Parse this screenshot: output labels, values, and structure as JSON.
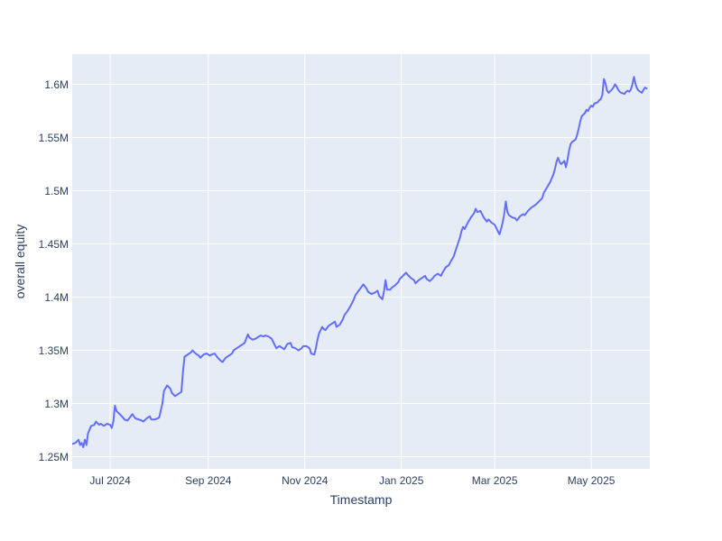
{
  "chart_data": {
    "type": "line",
    "title": "",
    "xlabel": "Timestamp",
    "ylabel": "overall equity",
    "legend": false,
    "grid": true,
    "plot_bg": "#e5ecf6",
    "grid_color": "#ffffff",
    "line_color": "#636efa",
    "text_color": "#2a3f5f",
    "xlim": [
      "2024-06-07",
      "2025-06-07"
    ],
    "ylim": [
      1.2386,
      1.6284
    ],
    "y_unit": "M",
    "x_ticks": [
      {
        "label": "Jul 2024",
        "date": "2024-07-01"
      },
      {
        "label": "Sep 2024",
        "date": "2024-09-01"
      },
      {
        "label": "Nov 2024",
        "date": "2024-11-01"
      },
      {
        "label": "Jan 2025",
        "date": "2025-01-01"
      },
      {
        "label": "Mar 2025",
        "date": "2025-03-01"
      },
      {
        "label": "May 2025",
        "date": "2025-05-01"
      }
    ],
    "y_ticks": [
      {
        "label": "1.25M",
        "value": 1.25
      },
      {
        "label": "1.3M",
        "value": 1.3
      },
      {
        "label": "1.35M",
        "value": 1.35
      },
      {
        "label": "1.4M",
        "value": 1.4
      },
      {
        "label": "1.45M",
        "value": 1.45
      },
      {
        "label": "1.5M",
        "value": 1.5
      },
      {
        "label": "1.55M",
        "value": 1.55
      },
      {
        "label": "1.6M",
        "value": 1.6
      }
    ],
    "series": [
      {
        "name": "overall equity",
        "points": [
          [
            "2024-06-07",
            1.262
          ],
          [
            "2024-06-09",
            1.263
          ],
          [
            "2024-06-11",
            1.266
          ],
          [
            "2024-06-12",
            1.261
          ],
          [
            "2024-06-13",
            1.263
          ],
          [
            "2024-06-14",
            1.259
          ],
          [
            "2024-06-15",
            1.266
          ],
          [
            "2024-06-16",
            1.261
          ],
          [
            "2024-06-17",
            1.272
          ],
          [
            "2024-06-19",
            1.279
          ],
          [
            "2024-06-21",
            1.28
          ],
          [
            "2024-06-22",
            1.283
          ],
          [
            "2024-06-24",
            1.28
          ],
          [
            "2024-06-25",
            1.281
          ],
          [
            "2024-06-27",
            1.279
          ],
          [
            "2024-06-29",
            1.281
          ],
          [
            "2024-07-01",
            1.28
          ],
          [
            "2024-07-02",
            1.277
          ],
          [
            "2024-07-03",
            1.283
          ],
          [
            "2024-07-04",
            1.298
          ],
          [
            "2024-07-05",
            1.293
          ],
          [
            "2024-07-07",
            1.29
          ],
          [
            "2024-07-09",
            1.287
          ],
          [
            "2024-07-10",
            1.285
          ],
          [
            "2024-07-12",
            1.284
          ],
          [
            "2024-07-14",
            1.288
          ],
          [
            "2024-07-15",
            1.29
          ],
          [
            "2024-07-17",
            1.286
          ],
          [
            "2024-07-19",
            1.285
          ],
          [
            "2024-07-21",
            1.284
          ],
          [
            "2024-07-22",
            1.283
          ],
          [
            "2024-07-24",
            1.286
          ],
          [
            "2024-07-26",
            1.288
          ],
          [
            "2024-07-27",
            1.285
          ],
          [
            "2024-07-29",
            1.285
          ],
          [
            "2024-07-31",
            1.286
          ],
          [
            "2024-08-01",
            1.287
          ],
          [
            "2024-08-03",
            1.3
          ],
          [
            "2024-08-04",
            1.312
          ],
          [
            "2024-08-06",
            1.317
          ],
          [
            "2024-08-08",
            1.314
          ],
          [
            "2024-08-09",
            1.31
          ],
          [
            "2024-08-11",
            1.307
          ],
          [
            "2024-08-13",
            1.309
          ],
          [
            "2024-08-15",
            1.311
          ],
          [
            "2024-08-16",
            1.33
          ],
          [
            "2024-08-17",
            1.344
          ],
          [
            "2024-08-19",
            1.346
          ],
          [
            "2024-08-21",
            1.348
          ],
          [
            "2024-08-22",
            1.35
          ],
          [
            "2024-08-24",
            1.347
          ],
          [
            "2024-08-26",
            1.345
          ],
          [
            "2024-08-27",
            1.343
          ],
          [
            "2024-08-29",
            1.346
          ],
          [
            "2024-08-31",
            1.347
          ],
          [
            "2024-09-02",
            1.345
          ],
          [
            "2024-09-03",
            1.346
          ],
          [
            "2024-09-05",
            1.347
          ],
          [
            "2024-09-07",
            1.343
          ],
          [
            "2024-09-09",
            1.34
          ],
          [
            "2024-09-10",
            1.339
          ],
          [
            "2024-09-12",
            1.343
          ],
          [
            "2024-09-14",
            1.345
          ],
          [
            "2024-09-16",
            1.347
          ],
          [
            "2024-09-17",
            1.35
          ],
          [
            "2024-09-19",
            1.352
          ],
          [
            "2024-09-21",
            1.354
          ],
          [
            "2024-09-22",
            1.355
          ],
          [
            "2024-09-24",
            1.357
          ],
          [
            "2024-09-26",
            1.365
          ],
          [
            "2024-09-27",
            1.362
          ],
          [
            "2024-09-29",
            1.36
          ],
          [
            "2024-10-01",
            1.361
          ],
          [
            "2024-10-02",
            1.362
          ],
          [
            "2024-10-04",
            1.364
          ],
          [
            "2024-10-06",
            1.363
          ],
          [
            "2024-10-07",
            1.364
          ],
          [
            "2024-10-09",
            1.363
          ],
          [
            "2024-10-11",
            1.361
          ],
          [
            "2024-10-13",
            1.355
          ],
          [
            "2024-10-14",
            1.352
          ],
          [
            "2024-10-16",
            1.354
          ],
          [
            "2024-10-18",
            1.352
          ],
          [
            "2024-10-19",
            1.351
          ],
          [
            "2024-10-21",
            1.356
          ],
          [
            "2024-10-23",
            1.357
          ],
          [
            "2024-10-24",
            1.353
          ],
          [
            "2024-10-26",
            1.352
          ],
          [
            "2024-10-28",
            1.35
          ],
          [
            "2024-10-30",
            1.352
          ],
          [
            "2024-10-31",
            1.354
          ],
          [
            "2024-11-02",
            1.354
          ],
          [
            "2024-11-04",
            1.352
          ],
          [
            "2024-11-05",
            1.347
          ],
          [
            "2024-11-07",
            1.346
          ],
          [
            "2024-11-08",
            1.352
          ],
          [
            "2024-11-09",
            1.36
          ],
          [
            "2024-11-10",
            1.366
          ],
          [
            "2024-11-12",
            1.372
          ],
          [
            "2024-11-13",
            1.37
          ],
          [
            "2024-11-14",
            1.369
          ],
          [
            "2024-11-16",
            1.373
          ],
          [
            "2024-11-18",
            1.375
          ],
          [
            "2024-11-20",
            1.377
          ],
          [
            "2024-11-21",
            1.372
          ],
          [
            "2024-11-23",
            1.374
          ],
          [
            "2024-11-25",
            1.379
          ],
          [
            "2024-11-26",
            1.383
          ],
          [
            "2024-11-28",
            1.387
          ],
          [
            "2024-11-30",
            1.392
          ],
          [
            "2024-12-02",
            1.398
          ],
          [
            "2024-12-03",
            1.402
          ],
          [
            "2024-12-05",
            1.406
          ],
          [
            "2024-12-07",
            1.41
          ],
          [
            "2024-12-08",
            1.412
          ],
          [
            "2024-12-10",
            1.408
          ],
          [
            "2024-12-11",
            1.405
          ],
          [
            "2024-12-13",
            1.403
          ],
          [
            "2024-12-15",
            1.404
          ],
          [
            "2024-12-17",
            1.406
          ],
          [
            "2024-12-18",
            1.401
          ],
          [
            "2024-12-20",
            1.398
          ],
          [
            "2024-12-21",
            1.405
          ],
          [
            "2024-12-22",
            1.416
          ],
          [
            "2024-12-23",
            1.407
          ],
          [
            "2024-12-25",
            1.407
          ],
          [
            "2024-12-26",
            1.409
          ],
          [
            "2024-12-28",
            1.411
          ],
          [
            "2024-12-30",
            1.414
          ],
          [
            "2024-12-31",
            1.417
          ],
          [
            "2025-01-02",
            1.42
          ],
          [
            "2025-01-04",
            1.423
          ],
          [
            "2025-01-05",
            1.421
          ],
          [
            "2025-01-07",
            1.418
          ],
          [
            "2025-01-09",
            1.416
          ],
          [
            "2025-01-10",
            1.413
          ],
          [
            "2025-01-12",
            1.416
          ],
          [
            "2025-01-14",
            1.418
          ],
          [
            "2025-01-16",
            1.42
          ],
          [
            "2025-01-17",
            1.417
          ],
          [
            "2025-01-19",
            1.415
          ],
          [
            "2025-01-21",
            1.418
          ],
          [
            "2025-01-22",
            1.42
          ],
          [
            "2025-01-24",
            1.422
          ],
          [
            "2025-01-26",
            1.42
          ],
          [
            "2025-01-27",
            1.423
          ],
          [
            "2025-01-29",
            1.428
          ],
          [
            "2025-01-31",
            1.43
          ],
          [
            "2025-02-01",
            1.433
          ],
          [
            "2025-02-03",
            1.438
          ],
          [
            "2025-02-05",
            1.447
          ],
          [
            "2025-02-07",
            1.456
          ],
          [
            "2025-02-08",
            1.462
          ],
          [
            "2025-02-09",
            1.466
          ],
          [
            "2025-02-10",
            1.464
          ],
          [
            "2025-02-12",
            1.47
          ],
          [
            "2025-02-14",
            1.475
          ],
          [
            "2025-02-16",
            1.479
          ],
          [
            "2025-02-17",
            1.483
          ],
          [
            "2025-02-18",
            1.48
          ],
          [
            "2025-02-20",
            1.481
          ],
          [
            "2025-02-22",
            1.475
          ],
          [
            "2025-02-24",
            1.471
          ],
          [
            "2025-02-25",
            1.473
          ],
          [
            "2025-02-27",
            1.47
          ],
          [
            "2025-03-01",
            1.468
          ],
          [
            "2025-03-03",
            1.462
          ],
          [
            "2025-03-04",
            1.459
          ],
          [
            "2025-03-05",
            1.464
          ],
          [
            "2025-03-06",
            1.47
          ],
          [
            "2025-03-07",
            1.478
          ],
          [
            "2025-03-08",
            1.49
          ],
          [
            "2025-03-09",
            1.48
          ],
          [
            "2025-03-10",
            1.477
          ],
          [
            "2025-03-12",
            1.475
          ],
          [
            "2025-03-14",
            1.474
          ],
          [
            "2025-03-15",
            1.472
          ],
          [
            "2025-03-17",
            1.476
          ],
          [
            "2025-03-19",
            1.478
          ],
          [
            "2025-03-20",
            1.477
          ],
          [
            "2025-03-22",
            1.481
          ],
          [
            "2025-03-24",
            1.484
          ],
          [
            "2025-03-26",
            1.486
          ],
          [
            "2025-03-27",
            1.487
          ],
          [
            "2025-03-29",
            1.49
          ],
          [
            "2025-03-31",
            1.493
          ],
          [
            "2025-04-01",
            1.498
          ],
          [
            "2025-04-03",
            1.503
          ],
          [
            "2025-04-05",
            1.508
          ],
          [
            "2025-04-07",
            1.515
          ],
          [
            "2025-04-08",
            1.52
          ],
          [
            "2025-04-09",
            1.527
          ],
          [
            "2025-04-10",
            1.531
          ],
          [
            "2025-04-11",
            1.527
          ],
          [
            "2025-04-12",
            1.525
          ],
          [
            "2025-04-14",
            1.528
          ],
          [
            "2025-04-15",
            1.522
          ],
          [
            "2025-04-16",
            1.529
          ],
          [
            "2025-04-17",
            1.538
          ],
          [
            "2025-04-18",
            1.544
          ],
          [
            "2025-04-19",
            1.546
          ],
          [
            "2025-04-21",
            1.548
          ],
          [
            "2025-04-22",
            1.552
          ],
          [
            "2025-04-23",
            1.558
          ],
          [
            "2025-04-24",
            1.565
          ],
          [
            "2025-04-25",
            1.57
          ],
          [
            "2025-04-27",
            1.573
          ],
          [
            "2025-04-28",
            1.576
          ],
          [
            "2025-04-29",
            1.575
          ],
          [
            "2025-04-30",
            1.578
          ],
          [
            "2025-05-01",
            1.58
          ],
          [
            "2025-05-02",
            1.579
          ],
          [
            "2025-05-03",
            1.582
          ],
          [
            "2025-05-05",
            1.583
          ],
          [
            "2025-05-06",
            1.585
          ],
          [
            "2025-05-07",
            1.586
          ],
          [
            "2025-05-08",
            1.59
          ],
          [
            "2025-05-09",
            1.605
          ],
          [
            "2025-05-10",
            1.601
          ],
          [
            "2025-05-11",
            1.594
          ],
          [
            "2025-05-12",
            1.592
          ],
          [
            "2025-05-14",
            1.595
          ],
          [
            "2025-05-15",
            1.597
          ],
          [
            "2025-05-16",
            1.6
          ],
          [
            "2025-05-17",
            1.598
          ],
          [
            "2025-05-18",
            1.595
          ],
          [
            "2025-05-19",
            1.593
          ],
          [
            "2025-05-20",
            1.592
          ],
          [
            "2025-05-22",
            1.591
          ],
          [
            "2025-05-23",
            1.593
          ],
          [
            "2025-05-24",
            1.594
          ],
          [
            "2025-05-25",
            1.593
          ],
          [
            "2025-05-26",
            1.595
          ],
          [
            "2025-05-27",
            1.6
          ],
          [
            "2025-05-28",
            1.607
          ],
          [
            "2025-05-29",
            1.6
          ],
          [
            "2025-05-30",
            1.596
          ],
          [
            "2025-05-31",
            1.594
          ],
          [
            "2025-06-01",
            1.593
          ],
          [
            "2025-06-02",
            1.592
          ],
          [
            "2025-06-03",
            1.595
          ],
          [
            "2025-06-04",
            1.597
          ],
          [
            "2025-06-05",
            1.596
          ]
        ]
      }
    ]
  }
}
